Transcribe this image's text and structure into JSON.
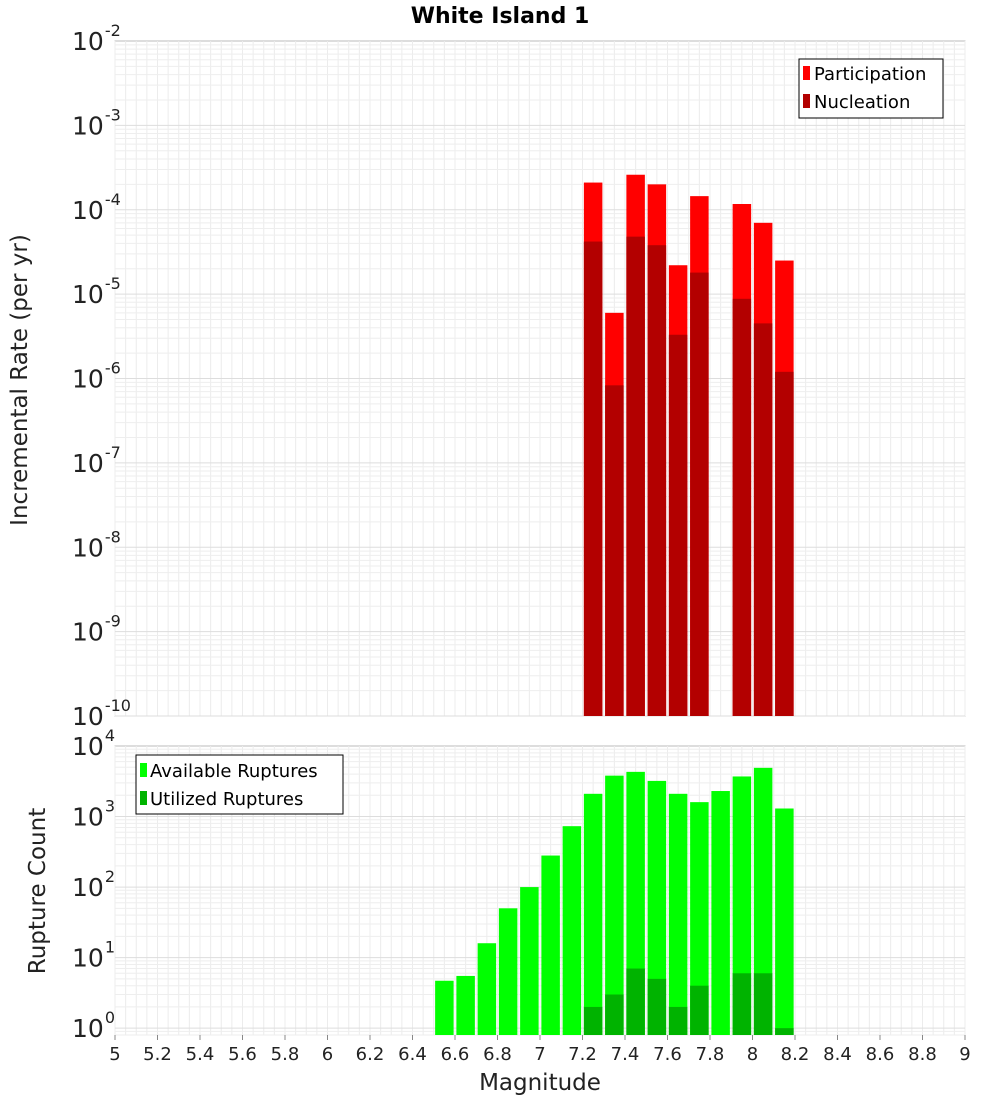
{
  "chart_data": [
    {
      "type": "bar",
      "title": "White Island 1",
      "xlabel": "Magnitude",
      "ylabel": "Incremental Rate (per yr)",
      "yscale": "log",
      "ylim": [
        1e-10,
        0.01
      ],
      "xlim": [
        5,
        9
      ],
      "grid": true,
      "legend_position": "top-right",
      "x": [
        7.25,
        7.35,
        7.45,
        7.55,
        7.65,
        7.75,
        7.95,
        8.05,
        8.15
      ],
      "series": [
        {
          "name": "Participation",
          "color": "#ff0000",
          "values": [
            0.00021,
            6e-06,
            0.00026,
            0.0002,
            2.2e-05,
            0.000145,
            0.000117,
            7e-05,
            2.5e-05
          ]
        },
        {
          "name": "Nucleation",
          "color": "#b30000",
          "values": [
            4.2e-05,
            8.3e-07,
            4.8e-05,
            3.8e-05,
            3.3e-06,
            1.8e-05,
            8.8e-06,
            4.5e-06,
            1.2e-06
          ]
        }
      ],
      "yticks": [
        {
          "base": "10",
          "exp": "-2"
        },
        {
          "base": "10",
          "exp": "-3"
        },
        {
          "base": "10",
          "exp": "-4"
        },
        {
          "base": "10",
          "exp": "-5"
        },
        {
          "base": "10",
          "exp": "-6"
        },
        {
          "base": "10",
          "exp": "-7"
        },
        {
          "base": "10",
          "exp": "-8"
        },
        {
          "base": "10",
          "exp": "-9"
        },
        {
          "base": "10",
          "exp": "-10"
        }
      ]
    },
    {
      "type": "bar",
      "title": "",
      "xlabel": "Magnitude",
      "ylabel": "Rupture Count",
      "yscale": "log",
      "ylim": [
        0.8,
        10000
      ],
      "xlim": [
        5,
        9
      ],
      "grid": true,
      "legend_position": "top-left",
      "x": [
        6.55,
        6.65,
        6.75,
        6.85,
        6.95,
        7.05,
        7.15,
        7.25,
        7.35,
        7.45,
        7.55,
        7.65,
        7.75,
        7.85,
        7.95,
        8.05,
        8.15
      ],
      "series": [
        {
          "name": "Available Ruptures",
          "color": "#00ff00",
          "values": [
            4.7,
            5.5,
            16,
            50,
            100,
            280,
            730,
            2100,
            3800,
            4300,
            3200,
            2100,
            1600,
            2300,
            3700,
            4900,
            1300
          ]
        },
        {
          "name": "Utilized Ruptures",
          "color": "#00b300",
          "values": [
            null,
            null,
            null,
            null,
            null,
            null,
            null,
            2,
            3,
            7,
            5,
            2,
            4,
            null,
            6,
            6,
            1
          ]
        }
      ],
      "yticks": [
        {
          "base": "10",
          "exp": "4"
        },
        {
          "base": "10",
          "exp": "3"
        },
        {
          "base": "10",
          "exp": "2"
        },
        {
          "base": "10",
          "exp": "1"
        },
        {
          "base": "10",
          "exp": "0"
        }
      ],
      "xticks": [
        "5",
        "5.2",
        "5.4",
        "5.6",
        "5.8",
        "6",
        "6.2",
        "6.4",
        "6.6",
        "6.8",
        "7",
        "7.2",
        "7.4",
        "7.6",
        "7.8",
        "8",
        "8.2",
        "8.4",
        "8.6",
        "8.8",
        "9"
      ]
    }
  ]
}
